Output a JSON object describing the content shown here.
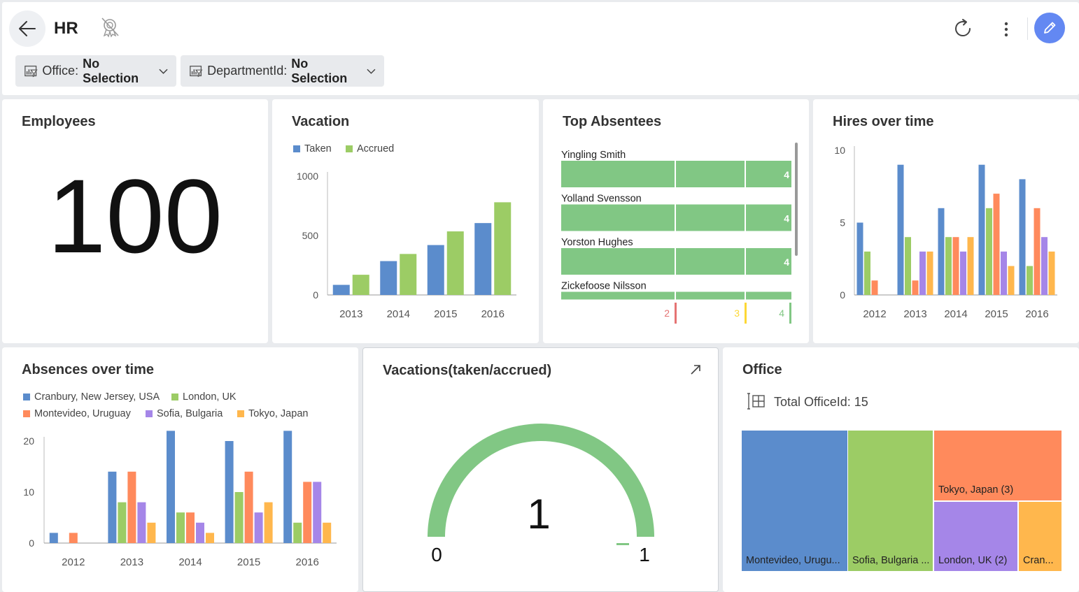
{
  "header": {
    "title": "HR",
    "filters": [
      {
        "label": "Office:",
        "value": "No Selection"
      },
      {
        "label": "DepartmentId:",
        "value": "No Selection"
      }
    ],
    "colors": {
      "accent": "#6388f2"
    }
  },
  "cards": {
    "employees": {
      "title": "Employees",
      "value": "100"
    },
    "vacation": {
      "title": "Vacation"
    },
    "top_absentees": {
      "title": "Top Absentees",
      "rows": [
        {
          "name": "Yingling Smith",
          "value": "4"
        },
        {
          "name": "Yolland Svensson",
          "value": "4"
        },
        {
          "name": "Yorston Hughes",
          "value": "4"
        },
        {
          "name": "Zickefoose Nilsson",
          "value": ""
        }
      ],
      "axis_labels": [
        "2",
        "3",
        "4"
      ]
    },
    "hires": {
      "title": "Hires over time"
    },
    "absences": {
      "title": "Absences over time"
    },
    "gauge": {
      "title": "Vacations(taken/accrued)",
      "value": "1",
      "min": "0",
      "max": "1",
      "fill_fraction": 1.0
    },
    "office": {
      "title": "Office",
      "total": "Total OfficeId: 15",
      "tiles": [
        {
          "label": "Montevideo, Urugu...",
          "color": "#5b8ccc"
        },
        {
          "label": "Sofia, Bulgaria ...",
          "color": "#9ccc65"
        },
        {
          "label": "Tokyo, Japan (3)",
          "color": "#ff8a5c"
        },
        {
          "label": "London, UK (2)",
          "color": "#a586e8"
        },
        {
          "label": "Cran...",
          "color": "#ffb74d"
        }
      ]
    }
  },
  "chart_data": [
    {
      "type": "bar",
      "title": "Vacation",
      "categories": [
        "2013",
        "2014",
        "2015",
        "2016"
      ],
      "series": [
        {
          "name": "Taken",
          "color": "#5b8ccc",
          "values": [
            85,
            285,
            420,
            605
          ]
        },
        {
          "name": "Accrued",
          "color": "#9ccc65",
          "values": [
            170,
            345,
            535,
            780
          ]
        }
      ],
      "ylim": [
        0,
        1000
      ],
      "yticks": [
        "0",
        "500",
        "1000"
      ],
      "legend": "top-left"
    },
    {
      "type": "bar",
      "title": "Hires over time",
      "categories": [
        "2012",
        "2013",
        "2014",
        "2015",
        "2016"
      ],
      "series": [
        {
          "color": "#5b8ccc",
          "values": [
            5,
            9,
            6,
            9,
            8
          ]
        },
        {
          "color": "#9ccc65",
          "values": [
            3,
            4,
            4,
            6,
            2
          ]
        },
        {
          "color": "#ff8a5c",
          "values": [
            1,
            1,
            4,
            7,
            6
          ]
        },
        {
          "color": "#a586e8",
          "values": [
            0,
            3,
            3,
            3,
            4
          ]
        },
        {
          "color": "#ffb74d",
          "values": [
            0,
            3,
            4,
            2,
            3
          ]
        }
      ],
      "ylim": [
        0,
        10
      ],
      "yticks": [
        "0",
        "5",
        "10"
      ]
    },
    {
      "type": "bar",
      "title": "Absences over time",
      "categories": [
        "2012",
        "2013",
        "2014",
        "2015",
        "2016"
      ],
      "series": [
        {
          "name": "Cranbury, New Jersey, USA",
          "color": "#5b8ccc",
          "values": [
            2,
            14,
            22,
            20,
            22
          ]
        },
        {
          "name": "London, UK",
          "color": "#9ccc65",
          "values": [
            0,
            8,
            6,
            10,
            4
          ]
        },
        {
          "name": "Montevideo, Uruguay",
          "color": "#ff8a5c",
          "values": [
            2,
            14,
            6,
            14,
            12
          ]
        },
        {
          "name": "Sofia, Bulgaria",
          "color": "#a586e8",
          "values": [
            0,
            8,
            4,
            6,
            12
          ]
        },
        {
          "name": "Tokyo, Japan",
          "color": "#ffb74d",
          "values": [
            0,
            4,
            2,
            8,
            4
          ]
        }
      ],
      "ylim": [
        0,
        20
      ],
      "yticks": [
        "0",
        "10",
        "20"
      ],
      "legend": "top-left"
    }
  ]
}
